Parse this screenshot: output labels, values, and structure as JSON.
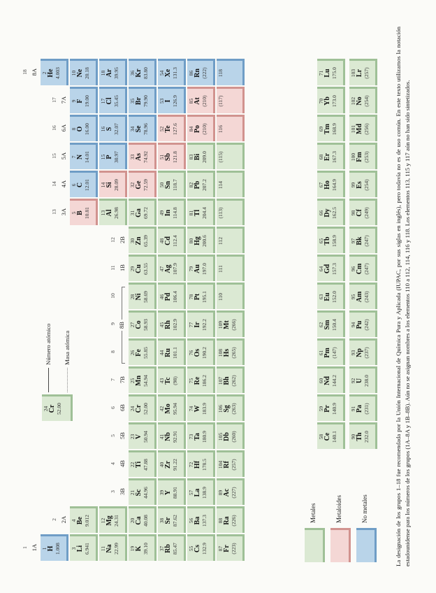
{
  "figure": {
    "caption": "La designación de los grupos 1–18 fue recomendada por la Unión Internacional de Química Pura y Aplicada (IUPAC, por sus siglas en inglés), pero todavía no es de uso común. En este texto utilizamos la notación estadounidense para los números de los grupos (1A–8A y 1B–8B). Aún no se asignan nombres a los elementos 110 a 112, 114, 116 y 118. Los elementos 113, 115 y 117 aún no han sido sintetizados.",
    "legend": [
      {
        "label": "Metales",
        "category": "metal"
      },
      {
        "label": "Metaloides",
        "category": "metalloid"
      },
      {
        "label": "No metales",
        "category": "nonmetal"
      }
    ],
    "callout": {
      "number_label": "Número atómico",
      "mass_label": "Masa atómica",
      "element": {
        "number": "24",
        "symbol": "Cr",
        "mass": "52.00"
      }
    },
    "colors": {
      "metal_fill": "#dbe9d3",
      "metal_edge": "#9fc097",
      "metalloid_fill": "#f4d7d5",
      "metalloid_edge": "#d1938f",
      "nonmetal_fill": "#b9d4e9",
      "nonmetal_edge": "#6f9dc6"
    },
    "group_labels": [
      {
        "g": "1",
        "s": "1A",
        "col": 1,
        "row": 1
      },
      {
        "g": "2",
        "s": "2A",
        "col": 2,
        "row": 2
      },
      {
        "g": "3",
        "s": "3B",
        "col": 3,
        "row": 4
      },
      {
        "g": "4",
        "s": "4B",
        "col": 4,
        "row": 4
      },
      {
        "g": "5",
        "s": "5B",
        "col": 5,
        "row": 4
      },
      {
        "g": "6",
        "s": "6B",
        "col": 6,
        "row": 4
      },
      {
        "g": "7",
        "s": "7B",
        "col": 7,
        "row": 4
      },
      {
        "g": "8",
        "s": "",
        "col": 8,
        "row": 4
      },
      {
        "g": "9",
        "s": "8B",
        "col": 9,
        "row": 4,
        "bracket": true
      },
      {
        "g": "10",
        "s": "",
        "col": 10,
        "row": 4
      },
      {
        "g": "11",
        "s": "1B",
        "col": 11,
        "row": 4
      },
      {
        "g": "12",
        "s": "2B",
        "col": 12,
        "row": 4
      },
      {
        "g": "13",
        "s": "3A",
        "col": 13,
        "row": 2
      },
      {
        "g": "14",
        "s": "4A",
        "col": 14,
        "row": 2
      },
      {
        "g": "15",
        "s": "5A",
        "col": 15,
        "row": 2
      },
      {
        "g": "16",
        "s": "6A",
        "col": 16,
        "row": 2
      },
      {
        "g": "17",
        "s": "7A",
        "col": 17,
        "row": 2
      },
      {
        "g": "18",
        "s": "8A",
        "col": 18,
        "row": 1
      }
    ],
    "elements": [
      {
        "n": "1",
        "s": "H",
        "m": "1.008",
        "c": "nm",
        "r": 1,
        "g": 1
      },
      {
        "n": "2",
        "s": "He",
        "m": "4.003",
        "c": "nm",
        "r": 1,
        "g": 18
      },
      {
        "n": "3",
        "s": "Li",
        "m": "6.941",
        "c": "m",
        "r": 2,
        "g": 1
      },
      {
        "n": "4",
        "s": "Be",
        "m": "9.012",
        "c": "m",
        "r": 2,
        "g": 2
      },
      {
        "n": "5",
        "s": "B",
        "m": "10.81",
        "c": "md",
        "r": 2,
        "g": 13
      },
      {
        "n": "6",
        "s": "C",
        "m": "12.01",
        "c": "nm",
        "r": 2,
        "g": 14
      },
      {
        "n": "7",
        "s": "N",
        "m": "14.01",
        "c": "nm",
        "r": 2,
        "g": 15
      },
      {
        "n": "8",
        "s": "O",
        "m": "16.00",
        "c": "nm",
        "r": 2,
        "g": 16
      },
      {
        "n": "9",
        "s": "F",
        "m": "19.00",
        "c": "nm",
        "r": 2,
        "g": 17
      },
      {
        "n": "10",
        "s": "Ne",
        "m": "20.18",
        "c": "nm",
        "r": 2,
        "g": 18
      },
      {
        "n": "11",
        "s": "Na",
        "m": "22.99",
        "c": "m",
        "r": 3,
        "g": 1
      },
      {
        "n": "12",
        "s": "Mg",
        "m": "24.31",
        "c": "m",
        "r": 3,
        "g": 2
      },
      {
        "n": "13",
        "s": "Al",
        "m": "26.98",
        "c": "m",
        "r": 3,
        "g": 13
      },
      {
        "n": "14",
        "s": "Si",
        "m": "28.09",
        "c": "md",
        "r": 3,
        "g": 14
      },
      {
        "n": "15",
        "s": "P",
        "m": "30.97",
        "c": "nm",
        "r": 3,
        "g": 15
      },
      {
        "n": "16",
        "s": "S",
        "m": "32.07",
        "c": "nm",
        "r": 3,
        "g": 16
      },
      {
        "n": "17",
        "s": "Cl",
        "m": "35.45",
        "c": "nm",
        "r": 3,
        "g": 17
      },
      {
        "n": "18",
        "s": "Ar",
        "m": "39.95",
        "c": "nm",
        "r": 3,
        "g": 18
      },
      {
        "n": "19",
        "s": "K",
        "m": "39.10",
        "c": "m",
        "r": 4,
        "g": 1
      },
      {
        "n": "20",
        "s": "Ca",
        "m": "40.08",
        "c": "m",
        "r": 4,
        "g": 2
      },
      {
        "n": "21",
        "s": "Sc",
        "m": "44.96",
        "c": "m",
        "r": 4,
        "g": 3
      },
      {
        "n": "22",
        "s": "Ti",
        "m": "47.88",
        "c": "m",
        "r": 4,
        "g": 4
      },
      {
        "n": "23",
        "s": "V",
        "m": "50.94",
        "c": "m",
        "r": 4,
        "g": 5
      },
      {
        "n": "24",
        "s": "Cr",
        "m": "52.00",
        "c": "m",
        "r": 4,
        "g": 6
      },
      {
        "n": "25",
        "s": "Mn",
        "m": "54.94",
        "c": "m",
        "r": 4,
        "g": 7
      },
      {
        "n": "26",
        "s": "Fe",
        "m": "55.85",
        "c": "m",
        "r": 4,
        "g": 8
      },
      {
        "n": "27",
        "s": "Co",
        "m": "58.93",
        "c": "m",
        "r": 4,
        "g": 9
      },
      {
        "n": "28",
        "s": "Ni",
        "m": "58.69",
        "c": "m",
        "r": 4,
        "g": 10
      },
      {
        "n": "29",
        "s": "Cu",
        "m": "63.55",
        "c": "m",
        "r": 4,
        "g": 11
      },
      {
        "n": "30",
        "s": "Zn",
        "m": "65.39",
        "c": "m",
        "r": 4,
        "g": 12
      },
      {
        "n": "31",
        "s": "Ga",
        "m": "69.72",
        "c": "m",
        "r": 4,
        "g": 13
      },
      {
        "n": "32",
        "s": "Ge",
        "m": "72.59",
        "c": "md",
        "r": 4,
        "g": 14
      },
      {
        "n": "33",
        "s": "As",
        "m": "74.92",
        "c": "md",
        "r": 4,
        "g": 15
      },
      {
        "n": "34",
        "s": "Se",
        "m": "78.96",
        "c": "nm",
        "r": 4,
        "g": 16
      },
      {
        "n": "35",
        "s": "Br",
        "m": "79.90",
        "c": "nm",
        "r": 4,
        "g": 17
      },
      {
        "n": "36",
        "s": "Kr",
        "m": "83.80",
        "c": "nm",
        "r": 4,
        "g": 18
      },
      {
        "n": "37",
        "s": "Rb",
        "m": "85.47",
        "c": "m",
        "r": 5,
        "g": 1
      },
      {
        "n": "38",
        "s": "Sr",
        "m": "87.62",
        "c": "m",
        "r": 5,
        "g": 2
      },
      {
        "n": "39",
        "s": "Y",
        "m": "88.91",
        "c": "m",
        "r": 5,
        "g": 3
      },
      {
        "n": "40",
        "s": "Zr",
        "m": "91.22",
        "c": "m",
        "r": 5,
        "g": 4
      },
      {
        "n": "41",
        "s": "Nb",
        "m": "92.91",
        "c": "m",
        "r": 5,
        "g": 5
      },
      {
        "n": "42",
        "s": "Mo",
        "m": "95.94",
        "c": "m",
        "r": 5,
        "g": 6
      },
      {
        "n": "43",
        "s": "Tc",
        "m": "(98)",
        "c": "m",
        "r": 5,
        "g": 7
      },
      {
        "n": "44",
        "s": "Ru",
        "m": "101.1",
        "c": "m",
        "r": 5,
        "g": 8
      },
      {
        "n": "45",
        "s": "Rh",
        "m": "102.9",
        "c": "m",
        "r": 5,
        "g": 9
      },
      {
        "n": "46",
        "s": "Pd",
        "m": "106.4",
        "c": "m",
        "r": 5,
        "g": 10
      },
      {
        "n": "47",
        "s": "Ag",
        "m": "107.9",
        "c": "m",
        "r": 5,
        "g": 11
      },
      {
        "n": "48",
        "s": "Cd",
        "m": "112.4",
        "c": "m",
        "r": 5,
        "g": 12
      },
      {
        "n": "49",
        "s": "In",
        "m": "114.8",
        "c": "m",
        "r": 5,
        "g": 13
      },
      {
        "n": "50",
        "s": "Sn",
        "m": "118.7",
        "c": "m",
        "r": 5,
        "g": 14
      },
      {
        "n": "51",
        "s": "Sb",
        "m": "121.8",
        "c": "md",
        "r": 5,
        "g": 15
      },
      {
        "n": "52",
        "s": "Te",
        "m": "127.6",
        "c": "md",
        "r": 5,
        "g": 16
      },
      {
        "n": "53",
        "s": "I",
        "m": "126.9",
        "c": "nm",
        "r": 5,
        "g": 17
      },
      {
        "n": "54",
        "s": "Xe",
        "m": "131.3",
        "c": "nm",
        "r": 5,
        "g": 18
      },
      {
        "n": "55",
        "s": "Cs",
        "m": "132.9",
        "c": "m",
        "r": 6,
        "g": 1
      },
      {
        "n": "56",
        "s": "Ba",
        "m": "137.3",
        "c": "m",
        "r": 6,
        "g": 2
      },
      {
        "n": "57",
        "s": "La",
        "m": "138.9",
        "c": "m",
        "r": 6,
        "g": 3
      },
      {
        "n": "72",
        "s": "Hf",
        "m": "178.5",
        "c": "m",
        "r": 6,
        "g": 4
      },
      {
        "n": "73",
        "s": "Ta",
        "m": "180.9",
        "c": "m",
        "r": 6,
        "g": 5
      },
      {
        "n": "74",
        "s": "W",
        "m": "183.9",
        "c": "m",
        "r": 6,
        "g": 6
      },
      {
        "n": "75",
        "s": "Re",
        "m": "186.2",
        "c": "m",
        "r": 6,
        "g": 7
      },
      {
        "n": "76",
        "s": "Os",
        "m": "190.2",
        "c": "m",
        "r": 6,
        "g": 8
      },
      {
        "n": "77",
        "s": "Ir",
        "m": "192.2",
        "c": "m",
        "r": 6,
        "g": 9
      },
      {
        "n": "78",
        "s": "Pt",
        "m": "195.1",
        "c": "m",
        "r": 6,
        "g": 10
      },
      {
        "n": "79",
        "s": "Au",
        "m": "197.0",
        "c": "m",
        "r": 6,
        "g": 11
      },
      {
        "n": "80",
        "s": "Hg",
        "m": "200.6",
        "c": "m",
        "r": 6,
        "g": 12
      },
      {
        "n": "81",
        "s": "Tl",
        "m": "204.4",
        "c": "m",
        "r": 6,
        "g": 13
      },
      {
        "n": "82",
        "s": "Pb",
        "m": "207.2",
        "c": "m",
        "r": 6,
        "g": 14
      },
      {
        "n": "83",
        "s": "Bi",
        "m": "209.0",
        "c": "m",
        "r": 6,
        "g": 15
      },
      {
        "n": "84",
        "s": "Po",
        "m": "(210)",
        "c": "md",
        "r": 6,
        "g": 16
      },
      {
        "n": "85",
        "s": "At",
        "m": "(210)",
        "c": "md",
        "r": 6,
        "g": 17
      },
      {
        "n": "86",
        "s": "Rn",
        "m": "(222)",
        "c": "nm",
        "r": 6,
        "g": 18
      },
      {
        "n": "87",
        "s": "Fr",
        "m": "(223)",
        "c": "m",
        "r": 7,
        "g": 1
      },
      {
        "n": "88",
        "s": "Ra",
        "m": "(226)",
        "c": "m",
        "r": 7,
        "g": 2
      },
      {
        "n": "89",
        "s": "Ac",
        "m": "(227)",
        "c": "m",
        "r": 7,
        "g": 3
      },
      {
        "n": "104",
        "s": "Rf",
        "m": "(257)",
        "c": "m",
        "r": 7,
        "g": 4
      },
      {
        "n": "105",
        "s": "Db",
        "m": "(260)",
        "c": "m",
        "r": 7,
        "g": 5
      },
      {
        "n": "106",
        "s": "Sg",
        "m": "(263)",
        "c": "m",
        "r": 7,
        "g": 6
      },
      {
        "n": "107",
        "s": "Bh",
        "m": "(262)",
        "c": "m",
        "r": 7,
        "g": 7
      },
      {
        "n": "108",
        "s": "Hs",
        "m": "(265)",
        "c": "m",
        "r": 7,
        "g": 8
      },
      {
        "n": "109",
        "s": "Mt",
        "m": "(266)",
        "c": "m",
        "r": 7,
        "g": 9
      },
      {
        "n": "110",
        "s": "",
        "m": "",
        "c": "m",
        "r": 7,
        "g": 10
      },
      {
        "n": "111",
        "s": "",
        "m": "",
        "c": "m",
        "r": 7,
        "g": 11
      },
      {
        "n": "112",
        "s": "",
        "m": "",
        "c": "m",
        "r": 7,
        "g": 12
      },
      {
        "n": "(113)",
        "s": "",
        "m": "",
        "c": "m",
        "r": 7,
        "g": 13
      },
      {
        "n": "114",
        "s": "",
        "m": "",
        "c": "m",
        "r": 7,
        "g": 14
      },
      {
        "n": "(115)",
        "s": "",
        "m": "",
        "c": "m",
        "r": 7,
        "g": 15
      },
      {
        "n": "116",
        "s": "",
        "m": "",
        "c": "md",
        "r": 7,
        "g": 16
      },
      {
        "n": "(117)",
        "s": "",
        "m": "",
        "c": "md",
        "r": 7,
        "g": 17
      },
      {
        "n": "118",
        "s": "",
        "m": "",
        "c": "nm",
        "r": 7,
        "g": 18
      },
      {
        "n": "58",
        "s": "Ce",
        "m": "140.1",
        "c": "m",
        "r": "L",
        "g": 5
      },
      {
        "n": "59",
        "s": "Pr",
        "m": "140.9",
        "c": "m",
        "r": "L",
        "g": 6
      },
      {
        "n": "60",
        "s": "Nd",
        "m": "144.2",
        "c": "m",
        "r": "L",
        "g": 7
      },
      {
        "n": "61",
        "s": "Pm",
        "m": "(147)",
        "c": "m",
        "r": "L",
        "g": 8
      },
      {
        "n": "62",
        "s": "Sm",
        "m": "150.4",
        "c": "m",
        "r": "L",
        "g": 9
      },
      {
        "n": "63",
        "s": "Eu",
        "m": "152.0",
        "c": "m",
        "r": "L",
        "g": 10
      },
      {
        "n": "64",
        "s": "Gd",
        "m": "157.3",
        "c": "m",
        "r": "L",
        "g": 11
      },
      {
        "n": "65",
        "s": "Tb",
        "m": "158.9",
        "c": "m",
        "r": "L",
        "g": 12
      },
      {
        "n": "66",
        "s": "Dy",
        "m": "162.5",
        "c": "m",
        "r": "L",
        "g": 13
      },
      {
        "n": "67",
        "s": "Ho",
        "m": "164.9",
        "c": "m",
        "r": "L",
        "g": 14
      },
      {
        "n": "68",
        "s": "Er",
        "m": "167.3",
        "c": "m",
        "r": "L",
        "g": 15
      },
      {
        "n": "69",
        "s": "Tm",
        "m": "168.9",
        "c": "m",
        "r": "L",
        "g": 16
      },
      {
        "n": "70",
        "s": "Yb",
        "m": "173.0",
        "c": "m",
        "r": "L",
        "g": 17
      },
      {
        "n": "71",
        "s": "Lu",
        "m": "175.0",
        "c": "m",
        "r": "L",
        "g": 18
      },
      {
        "n": "90",
        "s": "Th",
        "m": "232.0",
        "c": "m",
        "r": "A",
        "g": 5
      },
      {
        "n": "91",
        "s": "Pa",
        "m": "(231)",
        "c": "m",
        "r": "A",
        "g": 6
      },
      {
        "n": "92",
        "s": "U",
        "m": "238.0",
        "c": "m",
        "r": "A",
        "g": 7
      },
      {
        "n": "93",
        "s": "Np",
        "m": "(237)",
        "c": "m",
        "r": "A",
        "g": 8
      },
      {
        "n": "94",
        "s": "Pu",
        "m": "(242)",
        "c": "m",
        "r": "A",
        "g": 9
      },
      {
        "n": "95",
        "s": "Am",
        "m": "(243)",
        "c": "m",
        "r": "A",
        "g": 10
      },
      {
        "n": "96",
        "s": "Cm",
        "m": "(247)",
        "c": "m",
        "r": "A",
        "g": 11
      },
      {
        "n": "97",
        "s": "Bk",
        "m": "(247)",
        "c": "m",
        "r": "A",
        "g": 12
      },
      {
        "n": "98",
        "s": "Cf",
        "m": "(249)",
        "c": "m",
        "r": "A",
        "g": 13
      },
      {
        "n": "99",
        "s": "Es",
        "m": "(254)",
        "c": "m",
        "r": "A",
        "g": 14
      },
      {
        "n": "100",
        "s": "Fm",
        "m": "(253)",
        "c": "m",
        "r": "A",
        "g": 15
      },
      {
        "n": "101",
        "s": "Md",
        "m": "(256)",
        "c": "m",
        "r": "A",
        "g": 16
      },
      {
        "n": "102",
        "s": "No",
        "m": "(254)",
        "c": "m",
        "r": "A",
        "g": 17
      },
      {
        "n": "103",
        "s": "Lr",
        "m": "(257)",
        "c": "m",
        "r": "A",
        "g": 18
      }
    ]
  }
}
